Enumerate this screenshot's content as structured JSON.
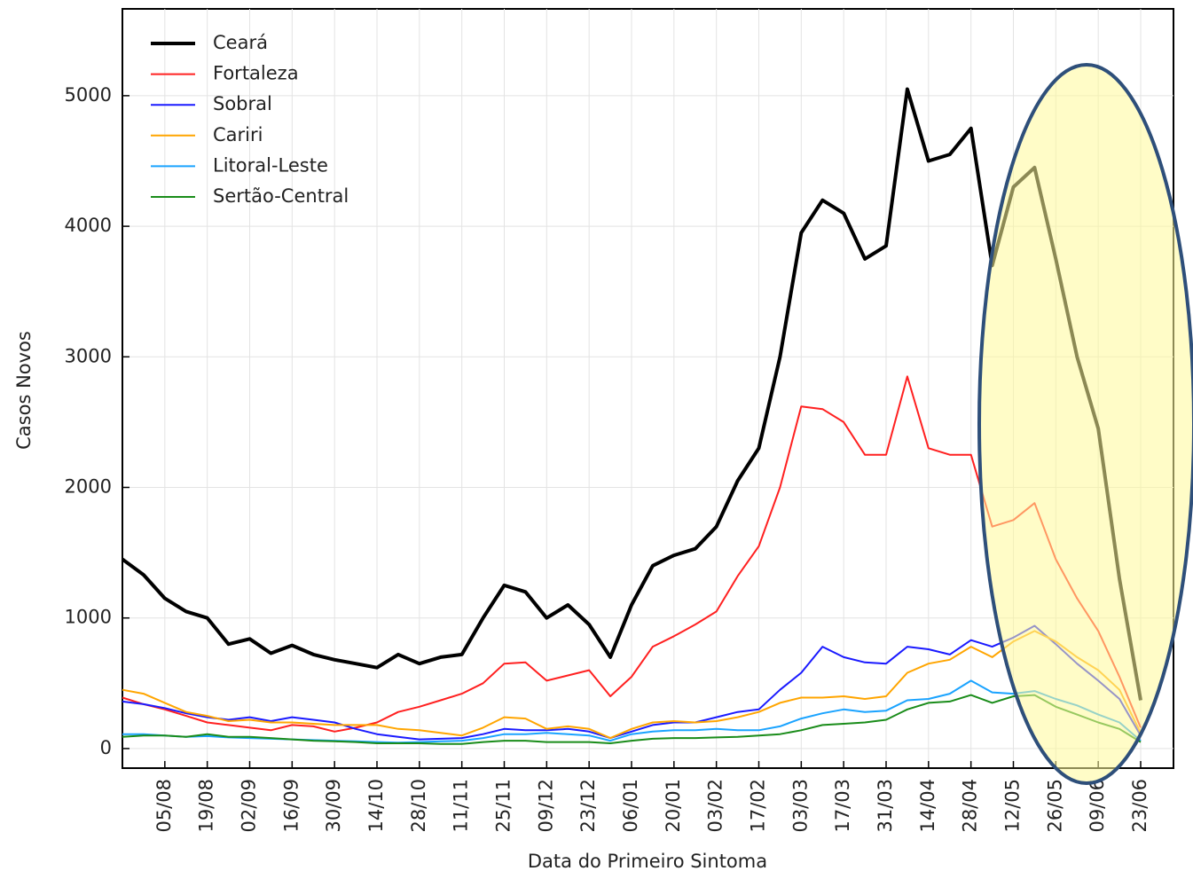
{
  "chart_data": {
    "type": "line",
    "x_label": "Data do Primeiro Sintoma",
    "y_label": "Casos Novos",
    "categories": [
      null,
      null,
      "05/08",
      null,
      "19/08",
      null,
      "02/09",
      null,
      "16/09",
      null,
      "30/09",
      null,
      "14/10",
      null,
      "28/10",
      null,
      "11/11",
      null,
      "25/11",
      null,
      "09/12",
      null,
      "23/12",
      null,
      "06/01",
      null,
      "20/01",
      null,
      "03/02",
      null,
      "17/02",
      null,
      "03/03",
      null,
      "17/03",
      null,
      "31/03",
      null,
      "14/04",
      null,
      "28/04",
      null,
      "12/05",
      null,
      "26/05",
      null,
      "09/06",
      null,
      "23/06"
    ],
    "series": [
      {
        "name": "Ceará",
        "color": "#000000",
        "width": 4,
        "values": [
          1450,
          1330,
          1150,
          1050,
          1000,
          800,
          840,
          730,
          790,
          720,
          680,
          650,
          620,
          720,
          650,
          700,
          720,
          1000,
          1250,
          1200,
          1000,
          1100,
          950,
          700,
          1100,
          1400,
          1480,
          1530,
          1700,
          2050,
          2300,
          3000,
          3950,
          4200,
          4100,
          3750,
          3850,
          5050,
          4500,
          4550,
          4750,
          3700,
          4300,
          4450,
          3750,
          3000,
          2450,
          1300,
          370
        ]
      },
      {
        "name": "Fortaleza",
        "color": "#ff2020",
        "width": 2,
        "values": [
          390,
          340,
          300,
          250,
          200,
          180,
          160,
          140,
          180,
          170,
          130,
          160,
          200,
          280,
          320,
          370,
          420,
          500,
          650,
          660,
          520,
          560,
          600,
          400,
          550,
          780,
          860,
          950,
          1050,
          1320,
          1550,
          2000,
          2620,
          2600,
          2500,
          2250,
          2250,
          2850,
          2300,
          2250,
          2250,
          1700,
          1750,
          1880,
          1450,
          1150,
          900,
          550,
          160
        ]
      },
      {
        "name": "Sobral",
        "color": "#1a1aff",
        "width": 2,
        "values": [
          360,
          340,
          310,
          270,
          240,
          220,
          240,
          210,
          240,
          220,
          200,
          150,
          110,
          90,
          70,
          75,
          80,
          110,
          150,
          140,
          140,
          150,
          130,
          80,
          130,
          180,
          200,
          200,
          240,
          280,
          300,
          450,
          580,
          780,
          700,
          660,
          650,
          780,
          760,
          720,
          830,
          780,
          850,
          940,
          800,
          650,
          520,
          380,
          100
        ]
      },
      {
        "name": "Cariri",
        "color": "#ffa500",
        "width": 2,
        "values": [
          450,
          420,
          350,
          280,
          250,
          210,
          220,
          200,
          200,
          190,
          180,
          180,
          180,
          150,
          140,
          120,
          100,
          160,
          240,
          230,
          150,
          170,
          150,
          80,
          150,
          200,
          210,
          200,
          210,
          240,
          280,
          350,
          390,
          390,
          400,
          380,
          400,
          580,
          650,
          680,
          780,
          700,
          820,
          900,
          820,
          700,
          600,
          450,
          120
        ]
      },
      {
        "name": "Litoral-Leste",
        "color": "#1aa3ff",
        "width": 2,
        "values": [
          110,
          110,
          100,
          90,
          95,
          85,
          80,
          75,
          70,
          65,
          60,
          55,
          50,
          45,
          50,
          55,
          60,
          80,
          110,
          110,
          120,
          110,
          100,
          60,
          110,
          130,
          140,
          140,
          150,
          140,
          140,
          170,
          230,
          270,
          300,
          280,
          290,
          370,
          380,
          420,
          520,
          430,
          420,
          440,
          380,
          330,
          260,
          200,
          60
        ]
      },
      {
        "name": "Sertão-Central",
        "color": "#1a8c1a",
        "width": 2,
        "values": [
          90,
          100,
          100,
          90,
          110,
          90,
          90,
          80,
          70,
          60,
          55,
          50,
          40,
          40,
          40,
          35,
          35,
          50,
          60,
          60,
          50,
          50,
          50,
          40,
          60,
          75,
          80,
          80,
          85,
          90,
          100,
          110,
          140,
          180,
          190,
          200,
          220,
          300,
          350,
          360,
          410,
          350,
          400,
          410,
          320,
          260,
          200,
          150,
          50
        ]
      }
    ],
    "ylim": [
      -150,
      5665
    ],
    "yticks": [
      0,
      1000,
      2000,
      3000,
      4000,
      5000
    ],
    "grid": true,
    "legend": "upper-left"
  }
}
